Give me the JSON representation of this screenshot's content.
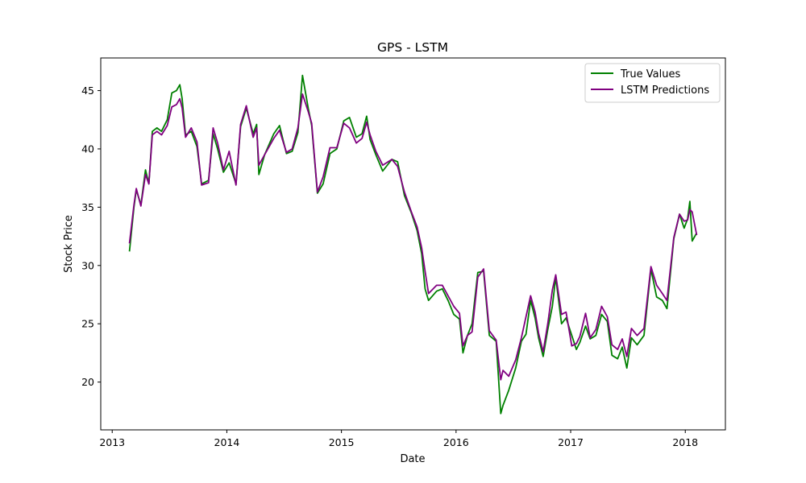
{
  "chart_data": {
    "type": "line",
    "title": "GPS - LSTM",
    "xlabel": "Date",
    "ylabel": "Stock Price",
    "xlim": [
      2012.9,
      2018.35
    ],
    "ylim": [
      15.9,
      47.8
    ],
    "xticks": [
      2013,
      2014,
      2015,
      2016,
      2017,
      2018
    ],
    "xtick_labels": [
      "2013",
      "2014",
      "2015",
      "2016",
      "2017",
      "2018"
    ],
    "yticks": [
      20,
      25,
      30,
      35,
      40,
      45
    ],
    "ytick_labels": [
      "20",
      "25",
      "30",
      "35",
      "40",
      "45"
    ],
    "grid": false,
    "legend_position": "top-right",
    "series": [
      {
        "name": "True Values",
        "color": "#008000",
        "points": [
          [
            2013.15,
            31.2
          ],
          [
            2013.19,
            35.0
          ],
          [
            2013.21,
            36.5
          ],
          [
            2013.25,
            35.2
          ],
          [
            2013.29,
            38.2
          ],
          [
            2013.32,
            37.0
          ],
          [
            2013.35,
            41.5
          ],
          [
            2013.39,
            41.8
          ],
          [
            2013.43,
            41.5
          ],
          [
            2013.48,
            42.5
          ],
          [
            2013.52,
            44.8
          ],
          [
            2013.56,
            45.0
          ],
          [
            2013.59,
            45.5
          ],
          [
            2013.61,
            44.3
          ],
          [
            2013.64,
            41.2
          ],
          [
            2013.69,
            41.5
          ],
          [
            2013.74,
            40.2
          ],
          [
            2013.78,
            37.0
          ],
          [
            2013.84,
            37.3
          ],
          [
            2013.88,
            41.3
          ],
          [
            2013.92,
            40.0
          ],
          [
            2013.97,
            38.0
          ],
          [
            2014.02,
            38.8
          ],
          [
            2014.08,
            37.0
          ],
          [
            2014.12,
            41.9
          ],
          [
            2014.17,
            43.5
          ],
          [
            2014.23,
            41.3
          ],
          [
            2014.26,
            42.1
          ],
          [
            2014.28,
            37.8
          ],
          [
            2014.33,
            39.5
          ],
          [
            2014.41,
            41.3
          ],
          [
            2014.46,
            42.0
          ],
          [
            2014.52,
            39.6
          ],
          [
            2014.57,
            39.8
          ],
          [
            2014.62,
            41.4
          ],
          [
            2014.66,
            46.3
          ],
          [
            2014.71,
            43.5
          ],
          [
            2014.74,
            42.0
          ],
          [
            2014.79,
            36.2
          ],
          [
            2014.84,
            37.0
          ],
          [
            2014.9,
            39.6
          ],
          [
            2014.96,
            40.0
          ],
          [
            2015.02,
            42.4
          ],
          [
            2015.07,
            42.7
          ],
          [
            2015.13,
            41.0
          ],
          [
            2015.18,
            41.3
          ],
          [
            2015.22,
            42.8
          ],
          [
            2015.25,
            40.8
          ],
          [
            2015.3,
            39.5
          ],
          [
            2015.36,
            38.1
          ],
          [
            2015.44,
            39.1
          ],
          [
            2015.49,
            38.9
          ],
          [
            2015.55,
            36.0
          ],
          [
            2015.61,
            34.5
          ],
          [
            2015.66,
            33.0
          ],
          [
            2015.7,
            31.0
          ],
          [
            2015.73,
            28.0
          ],
          [
            2015.76,
            27.0
          ],
          [
            2015.83,
            27.8
          ],
          [
            2015.88,
            28.0
          ],
          [
            2015.93,
            27.0
          ],
          [
            2015.98,
            25.8
          ],
          [
            2016.03,
            25.4
          ],
          [
            2016.06,
            22.5
          ],
          [
            2016.1,
            24.0
          ],
          [
            2016.14,
            25.0
          ],
          [
            2016.19,
            29.4
          ],
          [
            2016.24,
            29.5
          ],
          [
            2016.29,
            24.0
          ],
          [
            2016.35,
            23.5
          ],
          [
            2016.39,
            17.3
          ],
          [
            2016.41,
            18.0
          ],
          [
            2016.46,
            19.3
          ],
          [
            2016.52,
            21.2
          ],
          [
            2016.57,
            23.5
          ],
          [
            2016.61,
            24.1
          ],
          [
            2016.65,
            27.0
          ],
          [
            2016.69,
            25.5
          ],
          [
            2016.72,
            23.8
          ],
          [
            2016.76,
            22.2
          ],
          [
            2016.8,
            24.5
          ],
          [
            2016.84,
            26.5
          ],
          [
            2016.87,
            29.0
          ],
          [
            2016.92,
            25.0
          ],
          [
            2016.96,
            25.5
          ],
          [
            2017.01,
            24.0
          ],
          [
            2017.05,
            22.8
          ],
          [
            2017.08,
            23.4
          ],
          [
            2017.13,
            24.8
          ],
          [
            2017.17,
            23.7
          ],
          [
            2017.22,
            24.0
          ],
          [
            2017.27,
            25.8
          ],
          [
            2017.32,
            25.2
          ],
          [
            2017.36,
            22.3
          ],
          [
            2017.41,
            22.0
          ],
          [
            2017.45,
            23.0
          ],
          [
            2017.49,
            21.2
          ],
          [
            2017.53,
            23.8
          ],
          [
            2017.58,
            23.2
          ],
          [
            2017.64,
            24.0
          ],
          [
            2017.7,
            29.7
          ],
          [
            2017.75,
            27.3
          ],
          [
            2017.8,
            27.0
          ],
          [
            2017.84,
            26.3
          ],
          [
            2017.9,
            32.3
          ],
          [
            2017.95,
            34.4
          ],
          [
            2017.99,
            33.2
          ],
          [
            2018.02,
            34.0
          ],
          [
            2018.04,
            35.5
          ],
          [
            2018.06,
            32.1
          ],
          [
            2018.1,
            32.8
          ]
        ]
      },
      {
        "name": "LSTM Predictions",
        "color": "#800080",
        "points": [
          [
            2013.15,
            31.9
          ],
          [
            2013.19,
            35.2
          ],
          [
            2013.21,
            36.6
          ],
          [
            2013.25,
            35.1
          ],
          [
            2013.29,
            37.8
          ],
          [
            2013.32,
            37.0
          ],
          [
            2013.35,
            41.2
          ],
          [
            2013.39,
            41.5
          ],
          [
            2013.43,
            41.2
          ],
          [
            2013.48,
            42.0
          ],
          [
            2013.52,
            43.6
          ],
          [
            2013.56,
            43.8
          ],
          [
            2013.59,
            44.3
          ],
          [
            2013.61,
            43.5
          ],
          [
            2013.64,
            41.0
          ],
          [
            2013.69,
            41.8
          ],
          [
            2013.74,
            40.6
          ],
          [
            2013.78,
            36.9
          ],
          [
            2013.84,
            37.1
          ],
          [
            2013.88,
            41.8
          ],
          [
            2013.92,
            40.5
          ],
          [
            2013.97,
            38.2
          ],
          [
            2014.02,
            39.8
          ],
          [
            2014.08,
            36.9
          ],
          [
            2014.12,
            42.1
          ],
          [
            2014.17,
            43.7
          ],
          [
            2014.23,
            41.0
          ],
          [
            2014.26,
            41.8
          ],
          [
            2014.28,
            38.6
          ],
          [
            2014.33,
            39.5
          ],
          [
            2014.41,
            40.9
          ],
          [
            2014.46,
            41.6
          ],
          [
            2014.52,
            39.7
          ],
          [
            2014.57,
            40.0
          ],
          [
            2014.62,
            41.8
          ],
          [
            2014.66,
            44.7
          ],
          [
            2014.71,
            43.2
          ],
          [
            2014.74,
            42.2
          ],
          [
            2014.79,
            36.3
          ],
          [
            2014.84,
            37.6
          ],
          [
            2014.9,
            40.1
          ],
          [
            2014.96,
            40.1
          ],
          [
            2015.02,
            42.2
          ],
          [
            2015.07,
            41.8
          ],
          [
            2015.13,
            40.5
          ],
          [
            2015.18,
            40.9
          ],
          [
            2015.22,
            42.3
          ],
          [
            2015.25,
            41.2
          ],
          [
            2015.3,
            39.8
          ],
          [
            2015.36,
            38.6
          ],
          [
            2015.44,
            39.1
          ],
          [
            2015.49,
            38.5
          ],
          [
            2015.55,
            36.3
          ],
          [
            2015.61,
            34.6
          ],
          [
            2015.66,
            33.3
          ],
          [
            2015.7,
            31.5
          ],
          [
            2015.73,
            29.5
          ],
          [
            2015.76,
            27.6
          ],
          [
            2015.83,
            28.3
          ],
          [
            2015.88,
            28.3
          ],
          [
            2015.93,
            27.4
          ],
          [
            2015.98,
            26.5
          ],
          [
            2016.03,
            25.9
          ],
          [
            2016.06,
            23.1
          ],
          [
            2016.1,
            24.0
          ],
          [
            2016.14,
            24.3
          ],
          [
            2016.19,
            29.0
          ],
          [
            2016.24,
            29.7
          ],
          [
            2016.29,
            24.4
          ],
          [
            2016.35,
            23.6
          ],
          [
            2016.39,
            20.2
          ],
          [
            2016.41,
            21.0
          ],
          [
            2016.46,
            20.5
          ],
          [
            2016.52,
            21.9
          ],
          [
            2016.57,
            23.8
          ],
          [
            2016.61,
            25.6
          ],
          [
            2016.65,
            27.4
          ],
          [
            2016.69,
            26.0
          ],
          [
            2016.72,
            24.2
          ],
          [
            2016.76,
            22.6
          ],
          [
            2016.8,
            25.0
          ],
          [
            2016.84,
            27.9
          ],
          [
            2016.87,
            29.2
          ],
          [
            2016.92,
            25.8
          ],
          [
            2016.96,
            26.0
          ],
          [
            2017.01,
            23.1
          ],
          [
            2017.05,
            23.3
          ],
          [
            2017.08,
            23.9
          ],
          [
            2017.13,
            25.9
          ],
          [
            2017.17,
            23.8
          ],
          [
            2017.22,
            24.5
          ],
          [
            2017.27,
            26.5
          ],
          [
            2017.32,
            25.6
          ],
          [
            2017.36,
            23.2
          ],
          [
            2017.41,
            22.8
          ],
          [
            2017.45,
            23.7
          ],
          [
            2017.49,
            22.2
          ],
          [
            2017.53,
            24.6
          ],
          [
            2017.58,
            24.0
          ],
          [
            2017.64,
            24.6
          ],
          [
            2017.7,
            29.9
          ],
          [
            2017.75,
            28.3
          ],
          [
            2017.8,
            27.6
          ],
          [
            2017.84,
            27.0
          ],
          [
            2017.9,
            32.4
          ],
          [
            2017.95,
            34.4
          ],
          [
            2017.99,
            33.8
          ],
          [
            2018.02,
            33.9
          ],
          [
            2018.04,
            34.8
          ],
          [
            2018.06,
            34.6
          ],
          [
            2018.1,
            32.6
          ]
        ]
      }
    ]
  }
}
